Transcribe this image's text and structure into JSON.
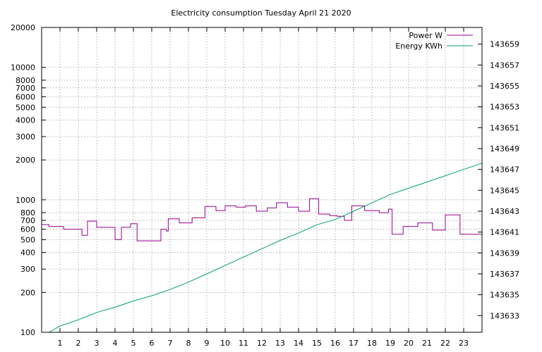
{
  "chart_data": {
    "type": "line",
    "title": "Electricity consumption Tuesday April 21 2020",
    "xlabel": "",
    "ylabel": "",
    "y2label": "",
    "x_ticks": [
      "1",
      "2",
      "3",
      "4",
      "5",
      "6",
      "7",
      "8",
      "9",
      "10",
      "11",
      "12",
      "13",
      "14",
      "15",
      "16",
      "17",
      "18",
      "19",
      "20",
      "21",
      "22",
      "23"
    ],
    "xlim": [
      0,
      24
    ],
    "ylim": [
      100,
      20000
    ],
    "y_scale": "log",
    "y_ticks": [
      "100",
      "200",
      "300",
      "400",
      "500",
      "600",
      "700",
      "800",
      "1000",
      "2000",
      "3000",
      "4000",
      "5000",
      "6000",
      "7000",
      "8000",
      "10000",
      "20000"
    ],
    "y2lim": [
      143631.4,
      143660.6
    ],
    "y2_ticks": [
      "143633",
      "143635",
      "143637",
      "143639",
      "143641",
      "143643",
      "143645",
      "143647",
      "143649",
      "143651",
      "143653",
      "143655",
      "143657",
      "143659"
    ],
    "grid": true,
    "legend_position": "top-right",
    "series": [
      {
        "name": "Power W",
        "color": "#94008f",
        "axis": "left",
        "style": "steps",
        "points": [
          [
            0,
            650
          ],
          [
            0.4,
            630
          ],
          [
            1.2,
            600
          ],
          [
            2.2,
            540
          ],
          [
            2.5,
            690
          ],
          [
            3.0,
            620
          ],
          [
            4.0,
            500
          ],
          [
            4.35,
            620
          ],
          [
            4.85,
            660
          ],
          [
            5.2,
            490
          ],
          [
            6.5,
            600
          ],
          [
            6.8,
            580
          ],
          [
            6.9,
            720
          ],
          [
            7.5,
            670
          ],
          [
            8.2,
            730
          ],
          [
            8.9,
            890
          ],
          [
            9.5,
            830
          ],
          [
            10.0,
            900
          ],
          [
            10.6,
            880
          ],
          [
            11.1,
            900
          ],
          [
            11.7,
            820
          ],
          [
            12.3,
            870
          ],
          [
            12.8,
            950
          ],
          [
            13.4,
            880
          ],
          [
            14.0,
            820
          ],
          [
            14.6,
            1020
          ],
          [
            15.1,
            780
          ],
          [
            15.7,
            760
          ],
          [
            16.1,
            750
          ],
          [
            16.5,
            700
          ],
          [
            16.9,
            900
          ],
          [
            17.6,
            830
          ],
          [
            18.4,
            800
          ],
          [
            18.9,
            850
          ],
          [
            19.1,
            550
          ],
          [
            19.7,
            630
          ],
          [
            20.5,
            670
          ],
          [
            21.3,
            590
          ],
          [
            22.0,
            770
          ],
          [
            22.8,
            550
          ],
          [
            24.0,
            550
          ]
        ]
      },
      {
        "name": "Energy KWh",
        "color": "#009e73",
        "axis": "right",
        "style": "line",
        "points": [
          [
            0.4,
            143631.4
          ],
          [
            1,
            143632.0
          ],
          [
            2,
            143632.6
          ],
          [
            3,
            143633.3
          ],
          [
            4,
            143633.8
          ],
          [
            5,
            143634.4
          ],
          [
            6,
            143634.9
          ],
          [
            7,
            143635.5
          ],
          [
            8,
            143636.2
          ],
          [
            9,
            143637.0
          ],
          [
            10,
            143637.8
          ],
          [
            11,
            143638.6
          ],
          [
            12,
            143639.4
          ],
          [
            13,
            143640.2
          ],
          [
            14,
            143640.9
          ],
          [
            15,
            143641.7
          ],
          [
            16,
            143642.2
          ],
          [
            17,
            143643.0
          ],
          [
            18,
            143643.8
          ],
          [
            19,
            143644.6
          ],
          [
            20,
            143645.2
          ],
          [
            21,
            143645.8
          ],
          [
            22,
            143646.4
          ],
          [
            23,
            143647.0
          ],
          [
            24,
            143647.6
          ]
        ]
      }
    ]
  }
}
